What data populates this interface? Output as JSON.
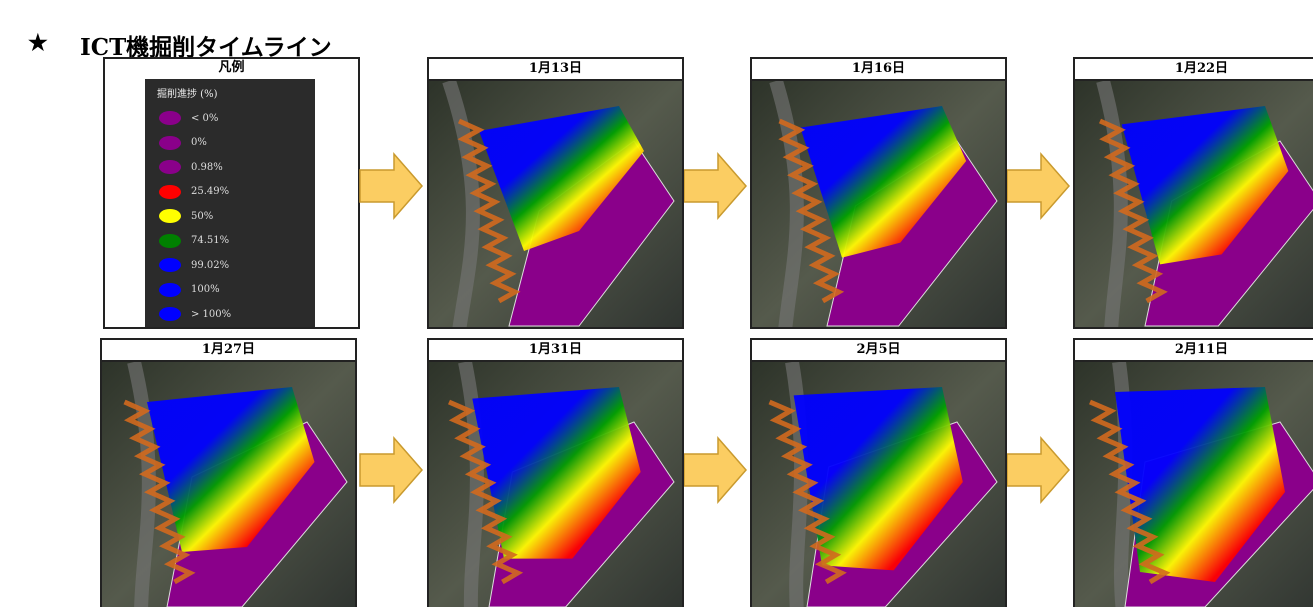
{
  "header": {
    "mark": "★",
    "title": "ICT機掘削タイムライン"
  },
  "legend": {
    "title": "凡例",
    "heading": "掘削進捗 (%)",
    "items": [
      {
        "label": "< 0%",
        "color": "#8a008a"
      },
      {
        "label": "0%",
        "color": "#8a008a"
      },
      {
        "label": "0.98%",
        "color": "#8a008a"
      },
      {
        "label": "25.49%",
        "color": "#ff0000"
      },
      {
        "label": "50%",
        "color": "#ffff00"
      },
      {
        "label": "74.51%",
        "color": "#008000"
      },
      {
        "label": "99.02%",
        "color": "#0000ff"
      },
      {
        "label": "100%",
        "color": "#0000ff"
      },
      {
        "label": "> 100%",
        "color": "#0000ff"
      }
    ]
  },
  "panels": [
    {
      "date": "1月13日"
    },
    {
      "date": "1月16日"
    },
    {
      "date": "1月22日"
    },
    {
      "date": "1月27日"
    },
    {
      "date": "1月31日"
    },
    {
      "date": "2月5日"
    },
    {
      "date": "2月11日"
    }
  ]
}
